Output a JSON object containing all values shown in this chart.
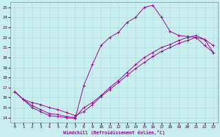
{
  "xlabel": "Windchill (Refroidissement éolien,°C)",
  "xlim": [
    -0.5,
    23.5
  ],
  "ylim": [
    13.5,
    25.5
  ],
  "xticks": [
    0,
    1,
    2,
    3,
    4,
    5,
    6,
    7,
    8,
    9,
    10,
    11,
    12,
    13,
    14,
    15,
    16,
    17,
    18,
    19,
    20,
    21,
    22,
    23
  ],
  "yticks": [
    14,
    15,
    16,
    17,
    18,
    19,
    20,
    21,
    22,
    23,
    24,
    25
  ],
  "background_color": "#c8eef0",
  "line_color": "#990099",
  "grid_color": "#b0dde0",
  "line1_x": [
    0,
    1,
    2,
    3,
    4,
    5,
    6,
    7,
    8,
    9,
    10,
    11,
    12,
    13,
    14,
    15,
    16,
    17,
    18,
    19,
    20,
    21,
    22,
    23
  ],
  "line1_y": [
    16.6,
    15.8,
    15.0,
    14.6,
    14.2,
    14.1,
    14.0,
    13.9,
    17.2,
    19.3,
    21.2,
    22.0,
    22.5,
    23.5,
    24.0,
    25.0,
    25.2,
    24.0,
    22.6,
    22.2,
    22.1,
    22.0,
    21.2,
    20.5
  ],
  "line2_x": [
    0,
    1,
    2,
    3,
    4,
    5,
    6,
    7,
    8,
    9,
    10,
    11,
    12,
    13,
    14,
    15,
    16,
    17,
    18,
    19,
    20,
    21,
    22,
    23
  ],
  "line2_y": [
    16.6,
    15.8,
    15.5,
    15.3,
    15.0,
    14.8,
    14.5,
    14.2,
    14.6,
    15.3,
    16.1,
    16.8,
    17.5,
    18.2,
    18.9,
    19.5,
    20.1,
    20.6,
    21.0,
    21.4,
    21.7,
    22.0,
    21.8,
    20.5
  ],
  "line3_x": [
    0,
    1,
    2,
    3,
    4,
    5,
    6,
    7,
    8,
    9,
    10,
    11,
    12,
    13,
    14,
    15,
    16,
    17,
    18,
    19,
    20,
    21,
    22,
    23
  ],
  "line3_y": [
    16.6,
    15.8,
    15.2,
    14.8,
    14.4,
    14.3,
    14.1,
    14.0,
    15.0,
    15.5,
    16.2,
    17.0,
    17.7,
    18.5,
    19.3,
    20.0,
    20.5,
    21.0,
    21.3,
    21.7,
    22.0,
    22.2,
    21.8,
    21.2
  ]
}
